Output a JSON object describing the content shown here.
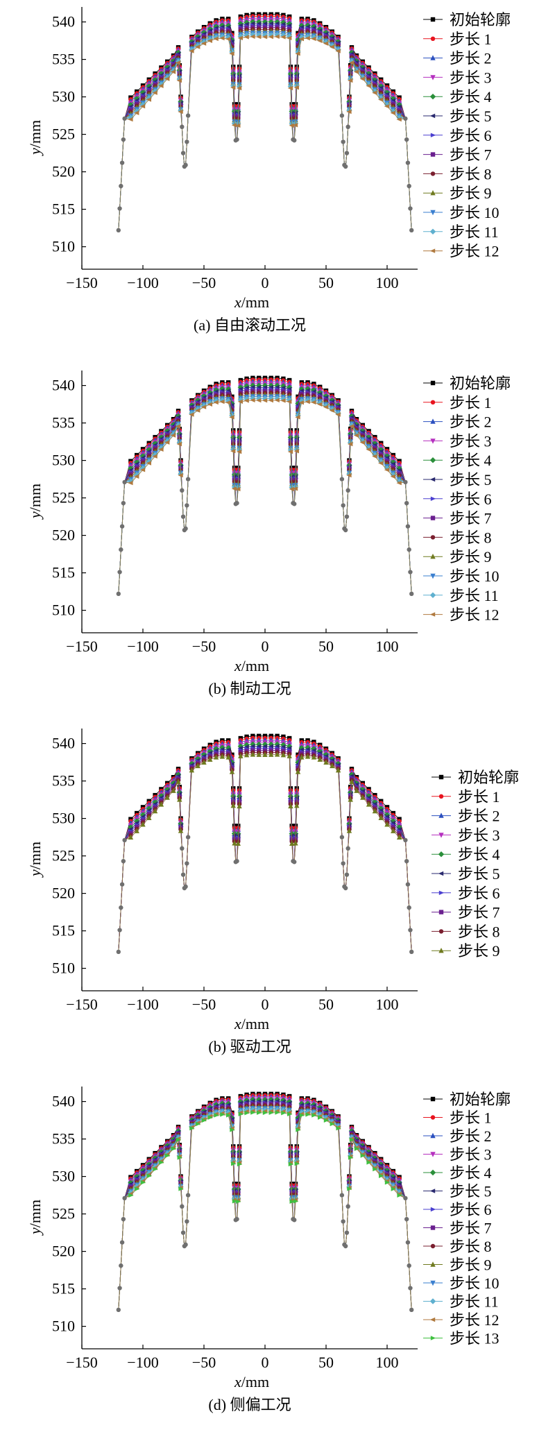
{
  "figure": {
    "captions": [
      "(a) 自由滚动工况",
      "(b) 制动工况",
      "(b) 驱动工况",
      "(d) 侧偏工况"
    ]
  },
  "chart_data": [
    {
      "type": "line",
      "caption": "(a) 自由滚动工况",
      "xlabel": "x/mm",
      "ylabel": "y/mm",
      "xlim": [
        -150,
        125
      ],
      "ylim": [
        507,
        542
      ],
      "xticks": [
        -150,
        -100,
        -50,
        0,
        50,
        100
      ],
      "yticks": [
        510,
        515,
        520,
        525,
        530,
        535,
        540
      ],
      "legend_position": "right",
      "legend": [
        "初始轮廓",
        "步长 1",
        "步长 2",
        "步长 3",
        "步长 4",
        "步长 5",
        "步长 6",
        "步长 7",
        "步长 8",
        "步长 9",
        "步长 10",
        "步长 11",
        "步长 12"
      ],
      "series_count": 13,
      "max_wear_mm": 3.0
    },
    {
      "type": "line",
      "caption": "(b) 制动工况",
      "xlabel": "x/mm",
      "ylabel": "y/mm",
      "xlim": [
        -150,
        125
      ],
      "ylim": [
        507,
        542
      ],
      "xticks": [
        -150,
        -100,
        -50,
        0,
        50,
        100
      ],
      "yticks": [
        510,
        515,
        520,
        525,
        530,
        535,
        540
      ],
      "legend_position": "right",
      "legend": [
        "初始轮廓",
        "步长 1",
        "步长 2",
        "步长 3",
        "步长 4",
        "步长 5",
        "步长 6",
        "步长 7",
        "步长 8",
        "步长 9",
        "步长 10",
        "步长 11",
        "步长 12"
      ],
      "series_count": 13,
      "max_wear_mm": 3.0
    },
    {
      "type": "line",
      "caption": "(b) 驱动工况",
      "xlabel": "x/mm",
      "ylabel": "y/mm",
      "xlim": [
        -150,
        125
      ],
      "ylim": [
        507,
        542
      ],
      "xticks": [
        -150,
        -100,
        -50,
        0,
        50,
        100
      ],
      "yticks": [
        510,
        515,
        520,
        525,
        530,
        535,
        540
      ],
      "legend_position": "right",
      "legend": [
        "初始轮廓",
        "步长 1",
        "步长 2",
        "步长 3",
        "步长 4",
        "步长 5",
        "步长 6",
        "步长 7",
        "步长 8",
        "步长 9"
      ],
      "series_count": 10,
      "max_wear_mm": 2.5
    },
    {
      "type": "line",
      "caption": "(d) 侧偏工况",
      "xlabel": "x/mm",
      "ylabel": "y/mm",
      "xlim": [
        -150,
        125
      ],
      "ylim": [
        507,
        542
      ],
      "xticks": [
        -150,
        -100,
        -50,
        0,
        50,
        100
      ],
      "yticks": [
        510,
        515,
        520,
        525,
        530,
        535,
        540
      ],
      "legend_position": "right",
      "legend": [
        "初始轮廓",
        "步长 1",
        "步长 2",
        "步长 3",
        "步长 4",
        "步长 5",
        "步长 6",
        "步长 7",
        "步长 8",
        "步长 9",
        "步长 10",
        "步长 11",
        "步长 12",
        "步长 13"
      ],
      "series_count": 14,
      "max_wear_mm": 2.5
    }
  ],
  "initial_profile": {
    "x": [
      -120,
      -119,
      -118,
      -117,
      -116,
      -115,
      -110,
      -105,
      -100,
      -95,
      -90,
      -85,
      -80,
      -75,
      -71,
      -70,
      -69,
      -68,
      -67,
      -66,
      -65,
      -64,
      -63,
      -60,
      -55,
      -50,
      -45,
      -40,
      -35,
      -30,
      -27,
      -26,
      -25,
      -24,
      -23,
      -22,
      -21,
      -20,
      -15,
      -10,
      -5,
      0,
      5,
      10,
      15,
      20,
      21,
      22,
      23,
      24,
      25,
      26,
      27,
      30,
      35,
      40,
      45,
      50,
      55,
      60,
      63,
      64,
      65,
      66,
      67,
      68,
      69,
      70,
      71,
      75,
      80,
      85,
      90,
      95,
      100,
      105,
      110,
      115,
      116,
      117,
      118,
      119,
      120
    ],
    "y": [
      512.2,
      515.1,
      518.1,
      521.2,
      524.3,
      527.1,
      529.9,
      530.7,
      531.5,
      532.3,
      533.1,
      533.9,
      534.7,
      535.5,
      536.6,
      534.2,
      530.0,
      526.0,
      522.5,
      520.7,
      520.9,
      524.0,
      527.5,
      538.0,
      538.7,
      539.3,
      539.8,
      540.2,
      540.4,
      540.4,
      538.5,
      534.0,
      529.0,
      524.2,
      524.3,
      529.0,
      534.0,
      540.7,
      540.9,
      541.0,
      541.0,
      541.0,
      541.0,
      541.0,
      540.9,
      540.7,
      534.0,
      529.0,
      524.3,
      524.2,
      529.0,
      534.0,
      538.5,
      540.4,
      540.4,
      540.2,
      539.8,
      539.3,
      538.7,
      538.0,
      527.5,
      524.0,
      520.9,
      520.7,
      522.5,
      526.0,
      530.0,
      534.2,
      536.6,
      535.5,
      534.7,
      533.9,
      533.1,
      532.3,
      531.5,
      530.7,
      529.9,
      527.1,
      524.3,
      521.2,
      518.1,
      515.1,
      512.2
    ]
  },
  "palette": {
    "series_colors": [
      "#000000",
      "#e8141f",
      "#2a4fbf",
      "#b52fbf",
      "#2a8f3a",
      "#2a2a6f",
      "#4a3fd0",
      "#6a1f8f",
      "#7a1f2f",
      "#6f7a1f",
      "#3a7fcf",
      "#5fb0cf",
      "#b07a3f",
      "#3fc040"
    ],
    "groove_marker": "#6f6f6f"
  }
}
